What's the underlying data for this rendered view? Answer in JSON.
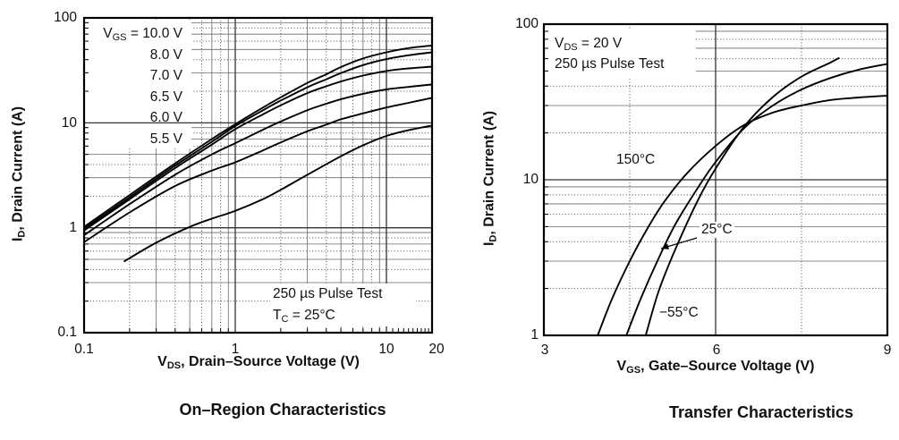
{
  "figure": {
    "background": "#ffffff",
    "text_color": "#111111",
    "curve_color": "#000000",
    "grid_major_color": "#333333",
    "grid_minor_color": "#555555"
  },
  "chart_data": [
    {
      "type": "line",
      "caption": "On–Region Characteristics",
      "x_axis": {
        "sym": "V",
        "sub": "DS",
        "rest": ", Drain–Source Voltage (V)",
        "scale": "log",
        "min": 0.1,
        "max": 20,
        "ticks": [
          {
            "v": 0.1,
            "label": "0.1"
          },
          {
            "v": 1,
            "label": "1"
          },
          {
            "v": 10,
            "label": "10"
          },
          {
            "v": 20,
            "label": "20"
          }
        ]
      },
      "y_axis": {
        "sym": "I",
        "sub": "D",
        "rest": ", Drain Current (A)",
        "scale": "log",
        "min": 0.1,
        "max": 100,
        "ticks": [
          {
            "v": 100,
            "label": "100"
          },
          {
            "v": 10,
            "label": "10"
          },
          {
            "v": 1,
            "label": "1"
          },
          {
            "v": 0.1,
            "label": "0.1"
          }
        ]
      },
      "legend": {
        "sym": "V",
        "sub": "GS",
        "eq": " = ",
        "items": [
          "10.0 V",
          "8.0 V",
          "7.0 V",
          "6.5 V",
          "6.0 V",
          "5.5 V"
        ]
      },
      "note_line1": "250 µs Pulse Test",
      "note_line2": {
        "sym": "T",
        "sub": "C",
        "rest": " = 25°C"
      },
      "series": [
        {
          "name": "VGS = 10.0 V",
          "points": [
            [
              0.1,
              1.02
            ],
            [
              0.2,
              2.05
            ],
            [
              0.4,
              4.1
            ],
            [
              0.7,
              7.0
            ],
            [
              1,
              9.7
            ],
            [
              1.5,
              13.8
            ],
            [
              2,
              17.5
            ],
            [
              3,
              24
            ],
            [
              4,
              29
            ],
            [
              5,
              34
            ],
            [
              7,
              41
            ],
            [
              10,
              47
            ],
            [
              14,
              51.5
            ],
            [
              20,
              54.5
            ]
          ]
        },
        {
          "name": "VGS = 8.0 V",
          "points": [
            [
              0.1,
              0.98
            ],
            [
              0.2,
              1.95
            ],
            [
              0.4,
              3.9
            ],
            [
              0.7,
              6.6
            ],
            [
              1,
              9.3
            ],
            [
              1.5,
              13.0
            ],
            [
              2,
              16.3
            ],
            [
              3,
              21.8
            ],
            [
              4,
              26
            ],
            [
              5,
              29.8
            ],
            [
              7,
              35.5
            ],
            [
              10,
              40.5
            ],
            [
              14,
              44
            ],
            [
              20,
              47
            ]
          ]
        },
        {
          "name": "VGS = 7.0 V",
          "points": [
            [
              0.1,
              0.94
            ],
            [
              0.2,
              1.87
            ],
            [
              0.4,
              3.7
            ],
            [
              0.7,
              6.2
            ],
            [
              1,
              8.7
            ],
            [
              1.5,
              11.9
            ],
            [
              2,
              14.7
            ],
            [
              3,
              19.2
            ],
            [
              4,
              22.3
            ],
            [
              5,
              24.8
            ],
            [
              7,
              28.2
            ],
            [
              10,
              31.2
            ],
            [
              14,
              33
            ],
            [
              20,
              34.3
            ]
          ]
        },
        {
          "name": "VGS = 6.5 V",
          "points": [
            [
              0.1,
              0.85
            ],
            [
              0.2,
              1.68
            ],
            [
              0.4,
              3.2
            ],
            [
              0.7,
              5.0
            ],
            [
              1,
              6.4
            ],
            [
              1.5,
              8.5
            ],
            [
              2,
              10.3
            ],
            [
              3,
              13.2
            ],
            [
              4,
              15.2
            ],
            [
              5,
              16.8
            ],
            [
              7,
              18.9
            ],
            [
              10,
              20.8
            ],
            [
              14,
              22
            ],
            [
              20,
              23.2
            ]
          ]
        },
        {
          "name": "VGS = 6.0 V",
          "points": [
            [
              0.1,
              0.73
            ],
            [
              0.2,
              1.4
            ],
            [
              0.4,
              2.5
            ],
            [
              0.7,
              3.5
            ],
            [
              1,
              4.2
            ],
            [
              1.5,
              5.4
            ],
            [
              2,
              6.5
            ],
            [
              3,
              8.3
            ],
            [
              4,
              9.6
            ],
            [
              5,
              10.8
            ],
            [
              7,
              12.3
            ],
            [
              10,
              14.0
            ],
            [
              14,
              15.5
            ],
            [
              20,
              17.3
            ]
          ]
        },
        {
          "name": "VGS = 5.5 V",
          "points": [
            [
              0.185,
              0.48
            ],
            [
              0.3,
              0.72
            ],
            [
              0.5,
              1.02
            ],
            [
              0.7,
              1.22
            ],
            [
              1,
              1.45
            ],
            [
              1.5,
              1.85
            ],
            [
              2,
              2.3
            ],
            [
              3,
              3.2
            ],
            [
              5,
              4.8
            ],
            [
              7,
              6.1
            ],
            [
              10,
              7.5
            ],
            [
              14,
              8.5
            ],
            [
              20,
              9.4
            ]
          ]
        }
      ]
    },
    {
      "type": "line",
      "caption": "Transfer Characteristics",
      "x_axis": {
        "sym": "V",
        "sub": "GS",
        "rest": ", Gate–Source Voltage (V)",
        "scale": "linear",
        "min": 3,
        "max": 9,
        "ticks": [
          {
            "v": 3,
            "label": "3"
          },
          {
            "v": 6,
            "label": "6"
          },
          {
            "v": 9,
            "label": "9"
          }
        ]
      },
      "y_axis": {
        "sym": "I",
        "sub": "D",
        "rest": ", Drain Current (A)",
        "scale": "log",
        "min": 1,
        "max": 100,
        "ticks": [
          {
            "v": 100,
            "label": "100"
          },
          {
            "v": 10,
            "label": "10"
          },
          {
            "v": 1,
            "label": "1"
          }
        ]
      },
      "cond_line1": {
        "sym": "V",
        "sub": "DS",
        "rest": " = 20 V"
      },
      "cond_line2": "250 µs Pulse Test",
      "series": [
        {
          "name": "150°C",
          "points": [
            [
              3.94,
              1
            ],
            [
              4.2,
              1.75
            ],
            [
              4.5,
              3.0
            ],
            [
              4.8,
              4.8
            ],
            [
              5.1,
              7.2
            ],
            [
              5.5,
              11
            ],
            [
              6,
              16.5
            ],
            [
              6.5,
              22.5
            ],
            [
              7,
              27
            ],
            [
              7.5,
              30
            ],
            [
              8,
              32.5
            ],
            [
              8.5,
              33.8
            ],
            [
              9,
              34.7
            ]
          ]
        },
        {
          "name": "25°C",
          "points": [
            [
              4.44,
              1
            ],
            [
              4.7,
              1.75
            ],
            [
              5,
              3.1
            ],
            [
              5.3,
              5.2
            ],
            [
              5.7,
              9
            ],
            [
              6,
              13
            ],
            [
              6.5,
              21.5
            ],
            [
              7,
              30
            ],
            [
              7.5,
              38
            ],
            [
              8,
              45
            ],
            [
              8.5,
              51
            ],
            [
              9,
              55.5
            ]
          ]
        },
        {
          "name": "−55°C",
          "points": [
            [
              4.78,
              1
            ],
            [
              5.0,
              1.9
            ],
            [
              5.3,
              3.6
            ],
            [
              5.7,
              7.5
            ],
            [
              6,
              11.8
            ],
            [
              6.5,
              22
            ],
            [
              7,
              34
            ],
            [
              7.5,
              46
            ],
            [
              8,
              56.5
            ],
            [
              8.15,
              60.5
            ]
          ]
        }
      ]
    }
  ]
}
